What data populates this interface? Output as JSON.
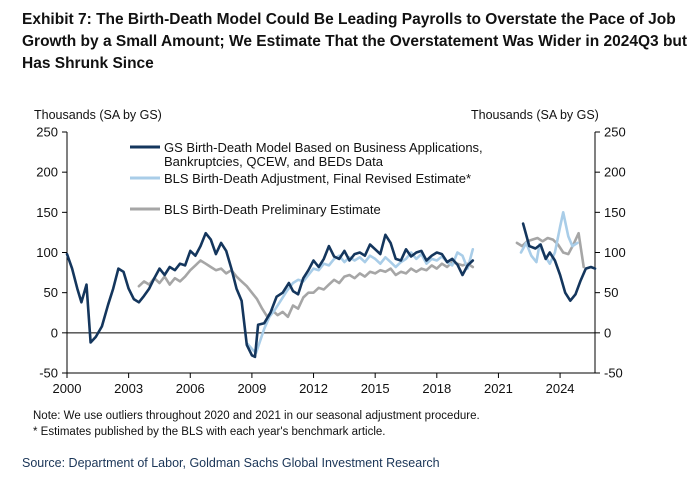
{
  "title_lines": [
    "Exhibit 7: The Birth-Death Model Could Be Leading Payrolls to Overstate the Pace of Job",
    "Growth by a Small Amount; We Estimate That the Overstatement Was Wider in 2024Q3 but",
    "Has Shrunk Since"
  ],
  "left_axis_unit": "Thousands  (SA by GS)",
  "right_axis_unit": "Thousands  (SA by GS)",
  "notes": [
    "Note: We use outliers throughout 2020 and 2021 in our seasonal adjustment procedure.",
    "* Estimates published by the BLS with each year's benchmark article."
  ],
  "source": "Source: Department of Labor, Goldman Sachs Global Investment Research",
  "chart_data": {
    "type": "line",
    "x_ticks": [
      2000,
      2003,
      2006,
      2009,
      2012,
      2015,
      2018,
      2021,
      2024
    ],
    "xlim": [
      2000,
      2025.7
    ],
    "y_ticks": [
      -50,
      0,
      50,
      100,
      150,
      200,
      250
    ],
    "ylim": [
      -50,
      250
    ],
    "legend_position": "top-center",
    "series": [
      {
        "name": "GS Birth-Death Model Based on Business Applications, Bankruptcies, QCEW, and BEDs Data",
        "legend_lines": [
          "GS Birth-Death Model Based on Business Applications,",
          "Bankruptcies, QCEW, and BEDs Data"
        ],
        "color": "#14365d",
        "width": 2.6,
        "segments": [
          [
            [
              2000.0,
              98
            ],
            [
              2000.25,
              80
            ],
            [
              2000.5,
              55
            ],
            [
              2000.7,
              38
            ],
            [
              2000.95,
              60
            ],
            [
              2001.15,
              -12
            ],
            [
              2001.4,
              -5
            ],
            [
              2001.7,
              8
            ],
            [
              2002.0,
              35
            ],
            [
              2002.25,
              55
            ],
            [
              2002.5,
              80
            ],
            [
              2002.75,
              76
            ],
            [
              2003.0,
              55
            ],
            [
              2003.25,
              42
            ],
            [
              2003.5,
              38
            ],
            [
              2003.75,
              46
            ],
            [
              2004.0,
              55
            ],
            [
              2004.25,
              68
            ],
            [
              2004.5,
              80
            ],
            [
              2004.75,
              72
            ],
            [
              2005.0,
              82
            ],
            [
              2005.25,
              78
            ],
            [
              2005.5,
              86
            ],
            [
              2005.75,
              84
            ],
            [
              2006.0,
              102
            ],
            [
              2006.25,
              96
            ],
            [
              2006.5,
              108
            ],
            [
              2006.75,
              124
            ],
            [
              2007.0,
              116
            ],
            [
              2007.25,
              98
            ],
            [
              2007.5,
              112
            ],
            [
              2007.75,
              102
            ],
            [
              2008.0,
              80
            ],
            [
              2008.25,
              55
            ],
            [
              2008.5,
              40
            ],
            [
              2008.75,
              -15
            ],
            [
              2009.0,
              -28
            ],
            [
              2009.15,
              -30
            ],
            [
              2009.3,
              10
            ],
            [
              2009.6,
              12
            ],
            [
              2009.9,
              25
            ],
            [
              2010.2,
              45
            ],
            [
              2010.5,
              50
            ],
            [
              2010.8,
              62
            ],
            [
              2011.0,
              52
            ],
            [
              2011.25,
              48
            ],
            [
              2011.5,
              68
            ],
            [
              2011.75,
              78
            ],
            [
              2012.0,
              90
            ],
            [
              2012.25,
              82
            ],
            [
              2012.5,
              92
            ],
            [
              2012.75,
              108
            ],
            [
              2013.0,
              95
            ],
            [
              2013.25,
              92
            ],
            [
              2013.5,
              102
            ],
            [
              2013.75,
              90
            ],
            [
              2014.0,
              98
            ],
            [
              2014.25,
              100
            ],
            [
              2014.5,
              96
            ],
            [
              2014.75,
              110
            ],
            [
              2015.0,
              104
            ],
            [
              2015.25,
              98
            ],
            [
              2015.5,
              122
            ],
            [
              2015.75,
              112
            ],
            [
              2016.0,
              92
            ],
            [
              2016.25,
              90
            ],
            [
              2016.5,
              104
            ],
            [
              2016.75,
              95
            ],
            [
              2017.0,
              100
            ],
            [
              2017.25,
              102
            ],
            [
              2017.5,
              90
            ],
            [
              2017.75,
              96
            ],
            [
              2018.0,
              100
            ],
            [
              2018.25,
              98
            ],
            [
              2018.5,
              88
            ],
            [
              2018.75,
              92
            ],
            [
              2019.0,
              85
            ],
            [
              2019.25,
              72
            ],
            [
              2019.5,
              84
            ],
            [
              2019.75,
              90
            ]
          ],
          [
            [
              2022.2,
              136
            ],
            [
              2022.5,
              108
            ],
            [
              2022.8,
              105
            ],
            [
              2023.05,
              110
            ],
            [
              2023.3,
              92
            ],
            [
              2023.5,
              100
            ],
            [
              2023.75,
              90
            ],
            [
              2024.0,
              72
            ],
            [
              2024.25,
              50
            ],
            [
              2024.5,
              40
            ],
            [
              2024.75,
              48
            ],
            [
              2025.0,
              65
            ],
            [
              2025.25,
              80
            ],
            [
              2025.5,
              82
            ],
            [
              2025.7,
              80
            ]
          ]
        ]
      },
      {
        "name": "BLS Birth-Death Adjustment, Final Revised Estimate*",
        "legend_lines": [
          "BLS Birth-Death Adjustment, Final Revised Estimate*"
        ],
        "color": "#a9cde8",
        "width": 2.6,
        "segments": [
          [
            [
              2008.8,
              -14
            ],
            [
              2009.0,
              -20
            ],
            [
              2009.2,
              -25
            ],
            [
              2009.4,
              -10
            ],
            [
              2009.6,
              5
            ],
            [
              2009.85,
              20
            ],
            [
              2010.1,
              28
            ],
            [
              2010.4,
              40
            ],
            [
              2010.7,
              52
            ],
            [
              2011.0,
              62
            ],
            [
              2011.25,
              66
            ],
            [
              2011.5,
              64
            ],
            [
              2011.75,
              72
            ],
            [
              2012.0,
              80
            ],
            [
              2012.25,
              78
            ],
            [
              2012.5,
              86
            ],
            [
              2012.75,
              84
            ],
            [
              2013.0,
              92
            ],
            [
              2013.25,
              96
            ],
            [
              2013.5,
              88
            ],
            [
              2013.75,
              94
            ],
            [
              2014.0,
              90
            ],
            [
              2014.25,
              94
            ],
            [
              2014.5,
              88
            ],
            [
              2014.75,
              96
            ],
            [
              2015.0,
              92
            ],
            [
              2015.25,
              86
            ],
            [
              2015.5,
              94
            ],
            [
              2015.75,
              88
            ],
            [
              2016.0,
              82
            ],
            [
              2016.25,
              88
            ],
            [
              2016.5,
              92
            ],
            [
              2016.75,
              100
            ],
            [
              2017.0,
              92
            ],
            [
              2017.25,
              98
            ],
            [
              2017.5,
              86
            ],
            [
              2017.75,
              92
            ],
            [
              2018.0,
              90
            ],
            [
              2018.25,
              95
            ],
            [
              2018.5,
              88
            ],
            [
              2018.75,
              84
            ],
            [
              2019.0,
              100
            ],
            [
              2019.25,
              96
            ],
            [
              2019.5,
              80
            ],
            [
              2019.75,
              104
            ]
          ],
          [
            [
              2022.1,
              100
            ],
            [
              2022.35,
              112
            ],
            [
              2022.6,
              96
            ],
            [
              2022.85,
              88
            ],
            [
              2023.0,
              110
            ],
            [
              2023.25,
              96
            ],
            [
              2023.5,
              86
            ],
            [
              2023.75,
              100
            ],
            [
              2024.0,
              132
            ],
            [
              2024.15,
              150
            ],
            [
              2024.4,
              120
            ],
            [
              2024.6,
              108
            ],
            [
              2024.85,
              112
            ]
          ]
        ]
      },
      {
        "name": "BLS Birth-Death Preliminary Estimate",
        "legend_lines": [
          "BLS Birth-Death Preliminary Estimate"
        ],
        "color": "#a6a6a6",
        "width": 2.6,
        "segments": [
          [
            [
              2003.5,
              58
            ],
            [
              2003.75,
              64
            ],
            [
              2004.0,
              60
            ],
            [
              2004.25,
              68
            ],
            [
              2004.5,
              62
            ],
            [
              2004.75,
              70
            ],
            [
              2005.0,
              60
            ],
            [
              2005.25,
              68
            ],
            [
              2005.5,
              64
            ],
            [
              2005.75,
              70
            ],
            [
              2006.0,
              78
            ],
            [
              2006.25,
              84
            ],
            [
              2006.5,
              90
            ],
            [
              2006.75,
              86
            ],
            [
              2007.0,
              82
            ],
            [
              2007.25,
              78
            ],
            [
              2007.5,
              80
            ],
            [
              2007.75,
              74
            ],
            [
              2008.0,
              78
            ],
            [
              2008.25,
              70
            ],
            [
              2008.5,
              64
            ],
            [
              2008.75,
              58
            ],
            [
              2009.0,
              50
            ],
            [
              2009.25,
              42
            ],
            [
              2009.5,
              30
            ],
            [
              2009.75,
              20
            ],
            [
              2010.0,
              28
            ],
            [
              2010.25,
              22
            ],
            [
              2010.5,
              26
            ],
            [
              2010.75,
              20
            ],
            [
              2011.0,
              34
            ],
            [
              2011.25,
              30
            ],
            [
              2011.5,
              44
            ],
            [
              2011.75,
              50
            ],
            [
              2012.0,
              50
            ],
            [
              2012.25,
              56
            ],
            [
              2012.5,
              54
            ],
            [
              2012.75,
              60
            ],
            [
              2013.0,
              66
            ],
            [
              2013.25,
              62
            ],
            [
              2013.5,
              70
            ],
            [
              2013.75,
              72
            ],
            [
              2014.0,
              68
            ],
            [
              2014.25,
              74
            ],
            [
              2014.5,
              70
            ],
            [
              2014.75,
              76
            ],
            [
              2015.0,
              74
            ],
            [
              2015.25,
              78
            ],
            [
              2015.5,
              76
            ],
            [
              2015.75,
              80
            ],
            [
              2016.0,
              72
            ],
            [
              2016.25,
              76
            ],
            [
              2016.5,
              74
            ],
            [
              2016.75,
              80
            ],
            [
              2017.0,
              76
            ],
            [
              2017.25,
              80
            ],
            [
              2017.5,
              78
            ],
            [
              2017.75,
              84
            ],
            [
              2018.0,
              80
            ],
            [
              2018.25,
              86
            ],
            [
              2018.5,
              82
            ],
            [
              2018.75,
              88
            ],
            [
              2019.0,
              86
            ],
            [
              2019.25,
              84
            ],
            [
              2019.5,
              86
            ],
            [
              2019.75,
              82
            ]
          ],
          [
            [
              2021.9,
              112
            ],
            [
              2022.15,
              108
            ],
            [
              2022.4,
              114
            ],
            [
              2022.65,
              116
            ],
            [
              2022.9,
              118
            ],
            [
              2023.15,
              114
            ],
            [
              2023.4,
              118
            ],
            [
              2023.65,
              116
            ],
            [
              2023.9,
              110
            ],
            [
              2024.15,
              100
            ],
            [
              2024.4,
              98
            ],
            [
              2024.65,
              110
            ],
            [
              2024.9,
              124
            ],
            [
              2025.15,
              82
            ]
          ]
        ]
      }
    ]
  }
}
